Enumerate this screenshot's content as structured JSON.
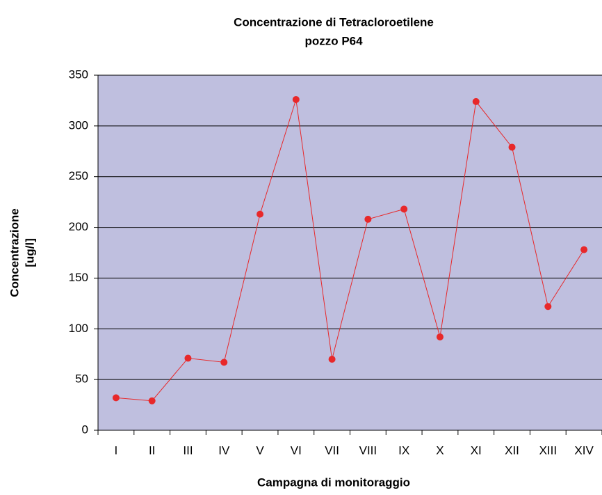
{
  "chart_data": {
    "type": "line",
    "title": "Concentrazione di Tetracloroetilene",
    "subtitle": "pozzo P64",
    "xlabel": "Campagna di monitoraggio",
    "ylabel": [
      "Concentrazione",
      "[ug/l]"
    ],
    "categories": [
      "I",
      "II",
      "III",
      "IV",
      "V",
      "VI",
      "VII",
      "VIII",
      "IX",
      "X",
      "XI",
      "XII",
      "XIII",
      "XIV"
    ],
    "series": [
      {
        "name": "Tetracloroetilene",
        "color": "#e8282a",
        "values": [
          32,
          29,
          71,
          67,
          213,
          326,
          70,
          208,
          218,
          92,
          324,
          279,
          122,
          178
        ]
      }
    ],
    "ylim": [
      0,
      350
    ],
    "yticks": [
      0,
      50,
      100,
      150,
      200,
      250,
      300,
      350
    ],
    "grid": true,
    "plot_background": "#bfbfdf"
  }
}
